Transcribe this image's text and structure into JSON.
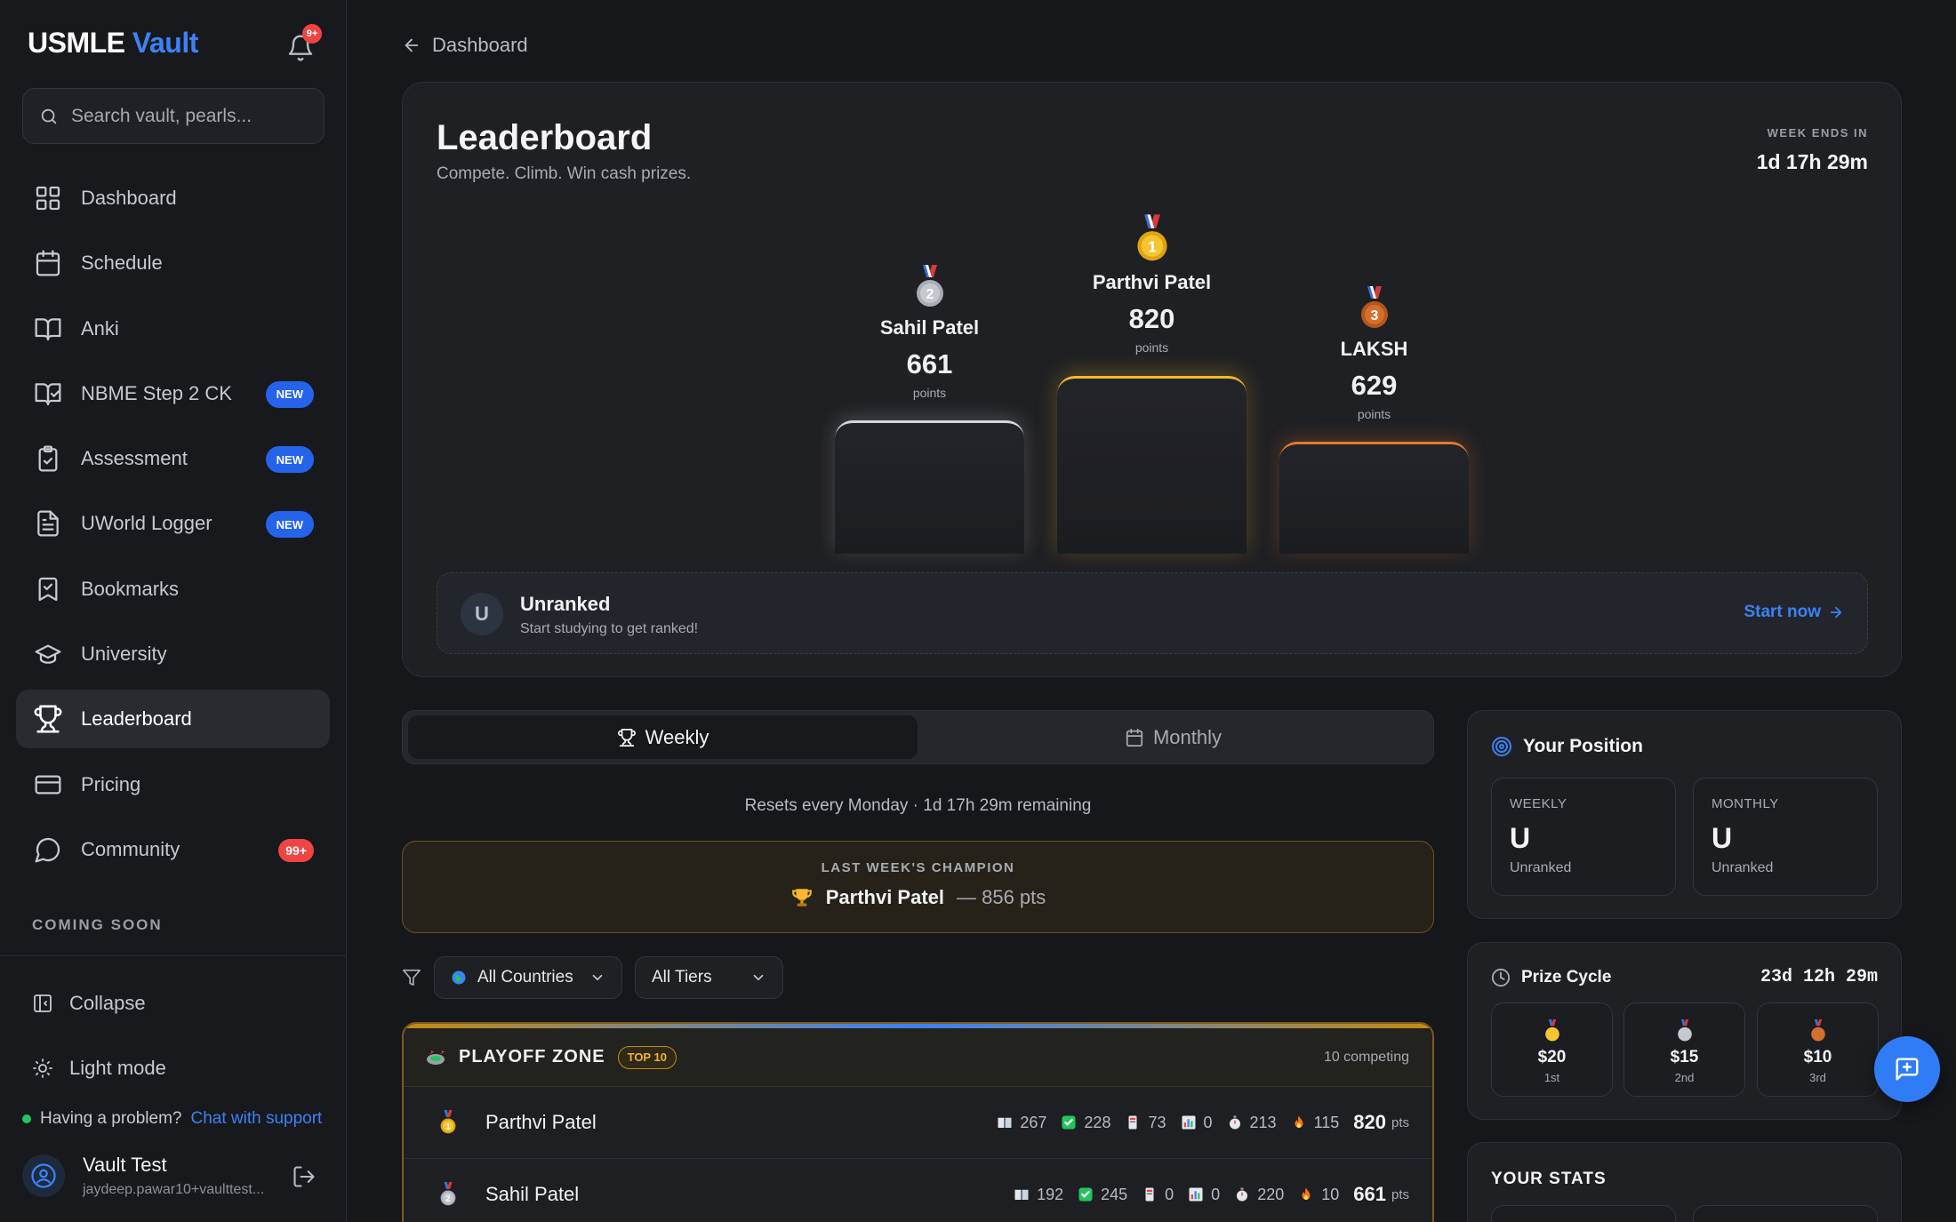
{
  "brand": {
    "part1": "USMLE",
    "part2": "Vault"
  },
  "notifications": {
    "count": "9+"
  },
  "search": {
    "placeholder": "Search vault, pearls..."
  },
  "nav": [
    {
      "label": "Dashboard",
      "icon": "grid-icon"
    },
    {
      "label": "Schedule",
      "icon": "calendar-icon"
    },
    {
      "label": "Anki",
      "icon": "book-open-icon"
    },
    {
      "label": "NBME Step 2 CK",
      "icon": "book-check-icon",
      "badge": "NEW"
    },
    {
      "label": "Assessment",
      "icon": "clipboard-check-icon",
      "badge": "NEW"
    },
    {
      "label": "UWorld Logger",
      "icon": "file-text-icon",
      "badge": "NEW"
    },
    {
      "label": "Bookmarks",
      "icon": "bookmark-check-icon"
    },
    {
      "label": "University",
      "icon": "graduation-cap-icon"
    },
    {
      "label": "Leaderboard",
      "icon": "trophy-icon",
      "active": true
    },
    {
      "label": "Pricing",
      "icon": "credit-card-icon"
    },
    {
      "label": "Community",
      "icon": "message-circle-icon",
      "badge": "99+"
    }
  ],
  "sidebar": {
    "coming_soon": "COMING SOON",
    "collapse": "Collapse",
    "light_mode": "Light mode",
    "problem_text": "Having a problem?",
    "support_link": "Chat with support",
    "user_name": "Vault Test",
    "user_email": "jaydeep.pawar10+vaulttest..."
  },
  "breadcrumb": {
    "back_label": "Dashboard"
  },
  "hero": {
    "title": "Leaderboard",
    "subtitle": "Compete. Climb. Win cash prizes.",
    "week_ends_label": "WEEK ENDS IN",
    "week_ends_value": "1d 17h 29m",
    "podium": [
      {
        "rank": "2",
        "name": "Sahil Patel",
        "points": "661",
        "points_label": "points",
        "color": "#d4d6db"
      },
      {
        "rank": "1",
        "name": "Parthvi Patel",
        "points": "820",
        "points_label": "points",
        "color": "#f5b82e"
      },
      {
        "rank": "3",
        "name": "LAKSH",
        "points": "629",
        "points_label": "points",
        "color": "#e8792b"
      }
    ],
    "unranked": {
      "initial": "U",
      "title": "Unranked",
      "subtitle": "Start studying to get ranked!",
      "cta": "Start now"
    }
  },
  "tabs": {
    "weekly": "Weekly",
    "monthly": "Monthly",
    "active": "Weekly"
  },
  "resets_text": "Resets every Monday · 1d 17h 29m remaining",
  "champion": {
    "label": "LAST WEEK'S CHAMPION",
    "name": "Parthvi Patel",
    "points": "— 856 pts"
  },
  "filters": {
    "country": "All Countries",
    "tier": "All Tiers"
  },
  "playoff": {
    "title": "PLAYOFF ZONE",
    "badge": "TOP 10",
    "count": "10 competing",
    "rows": [
      {
        "rank": "1",
        "name": "Parthvi Patel",
        "stats": [
          "267",
          "228",
          "73",
          "0",
          "213",
          "115"
        ],
        "points": "820",
        "points_unit": "pts"
      },
      {
        "rank": "2",
        "name": "Sahil Patel",
        "stats": [
          "192",
          "245",
          "0",
          "0",
          "220",
          "10"
        ],
        "points": "661",
        "points_unit": "pts"
      }
    ],
    "stat_icons": [
      "book-emoji-icon",
      "check-emoji-icon",
      "card-emoji-icon",
      "chart-emoji-icon",
      "stopwatch-emoji-icon",
      "fire-emoji-icon"
    ]
  },
  "position": {
    "title": "Your Position",
    "weekly": {
      "label": "WEEKLY",
      "value": "U",
      "status": "Unranked"
    },
    "monthly": {
      "label": "MONTHLY",
      "value": "U",
      "status": "Unranked"
    }
  },
  "prize_cycle": {
    "title": "Prize Cycle",
    "time": "23d 12h 29m",
    "prizes": [
      {
        "amount": "$20",
        "place": "1st"
      },
      {
        "amount": "$15",
        "place": "2nd"
      },
      {
        "amount": "$10",
        "place": "3rd"
      }
    ]
  },
  "your_stats": {
    "title": "YOUR STATS"
  },
  "colors": {
    "accent": "#3b82f6",
    "gold": "#f5b82e",
    "silver": "#d4d6db",
    "bronze": "#e8792b",
    "danger": "#ef4444"
  }
}
